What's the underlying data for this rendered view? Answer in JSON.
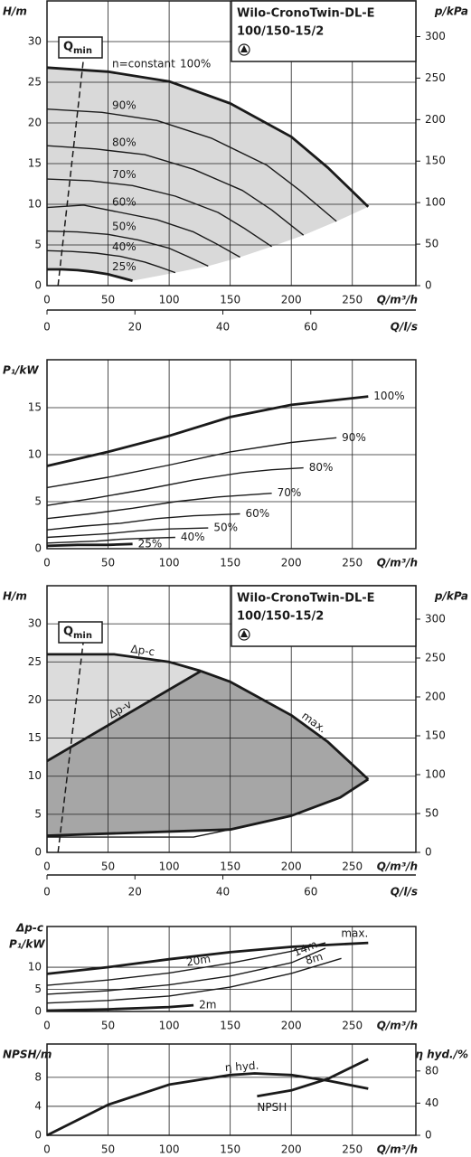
{
  "chart_data": [
    {
      "type": "line",
      "title": "Wilo-CronoTwin-DL-E",
      "subtitle": "100/150-15/2",
      "ylabel": "H/m",
      "y2label": "p/kPa",
      "xlabel": "Q/m³/h",
      "x2label": "Q/l/s",
      "annotation": "n=constant",
      "color": "#1a1a1a",
      "fill": "speed",
      "grid": true,
      "xlim": [
        0,
        302
      ],
      "xticks": [
        0,
        50,
        100,
        150,
        200,
        250
      ],
      "ylim": [
        0,
        35
      ],
      "yticks": [
        0,
        5,
        10,
        15,
        20,
        25,
        30
      ],
      "y2lim": [
        0,
        343
      ],
      "y2ticks": [
        0,
        50,
        100,
        150,
        200,
        250,
        300
      ],
      "x2lim": [
        0,
        83.9
      ],
      "x2ticks": [
        0,
        20,
        40,
        60
      ],
      "qmin": {
        "label": "Q",
        "sub": "min",
        "x": [
          9,
          30
        ],
        "values": [
          0,
          28
        ]
      },
      "series": [
        {
          "name": "100%",
          "label_pos": "annot",
          "thick": true,
          "x": [
            0,
            50,
            100,
            150,
            200,
            230,
            263
          ],
          "values": [
            26.8,
            26.3,
            25.1,
            22.4,
            18.3,
            14.5,
            9.7
          ]
        },
        {
          "name": "90%",
          "label_pos": "left",
          "x": [
            0,
            45,
            90,
            135,
            180,
            207,
            237
          ],
          "values": [
            21.7,
            21.3,
            20.3,
            18.1,
            14.8,
            11.7,
            7.9
          ]
        },
        {
          "name": "80%",
          "label_pos": "left",
          "x": [
            0,
            40,
            80,
            120,
            160,
            184,
            210
          ],
          "values": [
            17.2,
            16.8,
            16.1,
            14.3,
            11.7,
            9.3,
            6.2
          ]
        },
        {
          "name": "70%",
          "label_pos": "left",
          "x": [
            0,
            35,
            70,
            105,
            140,
            161,
            184
          ],
          "values": [
            13.1,
            12.9,
            12.3,
            11.0,
            9.0,
            7.1,
            4.8
          ]
        },
        {
          "name": "60%",
          "label_pos": "left",
          "x": [
            0,
            30,
            60,
            90,
            120,
            138,
            158
          ],
          "values": [
            9.6,
            9.9,
            9.0,
            8.1,
            6.6,
            5.2,
            3.5
          ]
        },
        {
          "name": "50%",
          "label_pos": "left",
          "x": [
            0,
            25,
            50,
            75,
            100,
            115,
            132
          ],
          "values": [
            6.7,
            6.6,
            6.3,
            5.6,
            4.6,
            3.6,
            2.4
          ]
        },
        {
          "name": "40%",
          "label_pos": "left",
          "x": [
            0,
            20,
            40,
            60,
            80,
            92,
            105
          ],
          "values": [
            4.3,
            4.2,
            4.0,
            3.6,
            2.9,
            2.3,
            1.6
          ]
        },
        {
          "name": "25%",
          "label_pos": "left",
          "thick": true,
          "x": [
            0,
            12.5,
            25,
            37.5,
            50,
            60,
            70
          ],
          "values": [
            2.0,
            2.0,
            1.9,
            1.7,
            1.4,
            1.0,
            0.6
          ]
        }
      ]
    },
    {
      "type": "line",
      "ylabel": "P₁/kW",
      "xlabel": "Q/m³/h",
      "color": "#1a1a1a",
      "grid": true,
      "xlim": [
        0,
        302
      ],
      "xticks": [
        0,
        50,
        100,
        150,
        200,
        250
      ],
      "ylim": [
        0,
        20.1
      ],
      "yticks": [
        0,
        5,
        10,
        15
      ],
      "series": [
        {
          "name": "100%",
          "label_pos": "end",
          "thick": true,
          "x": [
            0,
            50,
            100,
            150,
            200,
            263
          ],
          "values": [
            8.8,
            10.3,
            12.0,
            14.0,
            15.3,
            16.2
          ]
        },
        {
          "name": "90%",
          "label_pos": "end",
          "x": [
            0,
            50,
            100,
            150,
            200,
            237
          ],
          "values": [
            6.5,
            7.6,
            8.9,
            10.3,
            11.3,
            11.8
          ]
        },
        {
          "name": "80%",
          "label_pos": "end",
          "x": [
            0,
            40,
            80,
            120,
            160,
            184,
            210
          ],
          "values": [
            4.6,
            5.4,
            6.3,
            7.3,
            8.1,
            8.4,
            8.6
          ]
        },
        {
          "name": "70%",
          "label_pos": "end",
          "x": [
            0,
            35,
            70,
            105,
            140,
            184
          ],
          "values": [
            3.2,
            3.7,
            4.3,
            5.0,
            5.5,
            5.9
          ]
        },
        {
          "name": "60%",
          "label_pos": "end",
          "x": [
            0,
            30,
            60,
            90,
            120,
            158
          ],
          "values": [
            2.0,
            2.4,
            2.7,
            3.2,
            3.5,
            3.7
          ]
        },
        {
          "name": "50%",
          "label_pos": "end",
          "x": [
            0,
            25,
            50,
            75,
            100,
            132
          ],
          "values": [
            1.2,
            1.4,
            1.6,
            1.9,
            2.1,
            2.2
          ]
        },
        {
          "name": "40%",
          "label_pos": "end",
          "x": [
            0,
            20,
            40,
            60,
            80,
            105
          ],
          "values": [
            0.6,
            0.7,
            0.8,
            1.0,
            1.1,
            1.2
          ]
        },
        {
          "name": "25%",
          "label_pos": "end",
          "thick": true,
          "x": [
            0,
            25,
            50,
            70
          ],
          "values": [
            0.3,
            0.4,
            0.4,
            0.5
          ]
        }
      ]
    },
    {
      "type": "line",
      "title": "Wilo-CronoTwin-DL-E",
      "subtitle": "100/150-15/2",
      "ylabel": "H/m",
      "y2label": "p/kPa",
      "xlabel": "Q/m³/h",
      "x2label": "Q/l/s",
      "color": "#1a1a1a",
      "fill": "control",
      "grid": true,
      "xlim": [
        0,
        302
      ],
      "xticks": [
        0,
        50,
        100,
        150,
        200,
        250
      ],
      "ylim": [
        0,
        35
      ],
      "yticks": [
        0,
        5,
        10,
        15,
        20,
        25,
        30
      ],
      "y2lim": [
        0,
        343
      ],
      "y2ticks": [
        0,
        50,
        100,
        150,
        200,
        250,
        300
      ],
      "x2lim": [
        0,
        83.9
      ],
      "x2ticks": [
        0,
        20,
        40,
        60
      ],
      "qmin": {
        "label": "Q",
        "sub": "min",
        "x": [
          9,
          30
        ],
        "values": [
          0,
          28
        ]
      },
      "series": [
        {
          "name": "Δp-c",
          "label_pos": "mid",
          "thick": true,
          "x": [
            0,
            55,
            100,
            126
          ],
          "values": [
            26,
            26,
            25.0,
            23.8
          ]
        },
        {
          "name": "Δp-v",
          "label_pos": "mid",
          "thick": true,
          "x": [
            0,
            126
          ],
          "values": [
            12,
            23.8
          ]
        },
        {
          "name": "max.",
          "label_pos": "mid",
          "thick": true,
          "x": [
            126,
            150,
            200,
            230,
            263
          ],
          "values": [
            23.8,
            22.4,
            18.0,
            14.5,
            9.6
          ]
        },
        {
          "x": [
            0,
            120,
            150
          ],
          "values": [
            2,
            2,
            3
          ]
        },
        {
          "thick": true,
          "x": [
            0,
            150
          ],
          "values": [
            2.2,
            3
          ]
        },
        {
          "thick": true,
          "x": [
            150,
            200,
            240,
            263
          ],
          "values": [
            3,
            4.8,
            7.2,
            9.6
          ]
        }
      ]
    },
    {
      "type": "line",
      "ylabel_top": "Δp-c",
      "ylabel": "P₁/kW",
      "xlabel": "Q/m³/h",
      "color": "#1a1a1a",
      "grid": true,
      "xlim": [
        0,
        302
      ],
      "xticks": [
        0,
        50,
        100,
        150,
        200,
        250
      ],
      "ylim": [
        0,
        19.2
      ],
      "yticks": [
        0,
        5,
        10
      ],
      "series": [
        {
          "name": "max.",
          "label_pos": "above-end",
          "thick": true,
          "x": [
            0,
            50,
            100,
            150,
            200,
            263
          ],
          "values": [
            8.5,
            10.0,
            11.8,
            13.4,
            14.6,
            15.5
          ]
        },
        {
          "name": "20m",
          "label_pos": "mid",
          "x": [
            0,
            50,
            100,
            150,
            200,
            228
          ],
          "values": [
            5.9,
            7.1,
            8.7,
            10.9,
            13.6,
            15.5
          ]
        },
        {
          "name": "14m",
          "label_pos": "late",
          "x": [
            0,
            50,
            100,
            150,
            200,
            228
          ],
          "values": [
            3.9,
            4.7,
            6.0,
            8.0,
            11.0,
            14.3
          ]
        },
        {
          "name": "8m",
          "label_pos": "late",
          "x": [
            0,
            50,
            100,
            150,
            200,
            241
          ],
          "values": [
            1.9,
            2.5,
            3.5,
            5.5,
            8.6,
            12.0
          ]
        },
        {
          "name": "2m",
          "label_pos": "end",
          "thick": true,
          "x": [
            0,
            50,
            100,
            120
          ],
          "values": [
            0.2,
            0.5,
            1.0,
            1.4
          ]
        }
      ]
    },
    {
      "type": "line",
      "ylabel": "NPSH/m",
      "y2label": "η hyd./%",
      "xlabel": "Q/m³/h",
      "color": "#1a1a1a",
      "grid": true,
      "xlim": [
        0,
        302
      ],
      "xticks": [
        0,
        50,
        100,
        150,
        200,
        250
      ],
      "ylim": [
        0,
        12.6
      ],
      "yticks": [
        0,
        4,
        8
      ],
      "y2lim": [
        0,
        113.5
      ],
      "y2ticks": [
        0,
        40,
        80
      ],
      "series": [
        {
          "name": "η hyd.",
          "label_pos": "mid",
          "axis": "y2",
          "thick": true,
          "x": [
            0,
            50,
            100,
            150,
            170,
            200,
            230,
            263
          ],
          "values": [
            0,
            38,
            63,
            75,
            77,
            75,
            68,
            58
          ]
        },
        {
          "name": "NPSH",
          "label_pos": "below-start",
          "thick": true,
          "x": [
            172,
            200,
            230,
            263
          ],
          "values": [
            5.4,
            6.2,
            7.8,
            10.5
          ]
        }
      ]
    }
  ]
}
